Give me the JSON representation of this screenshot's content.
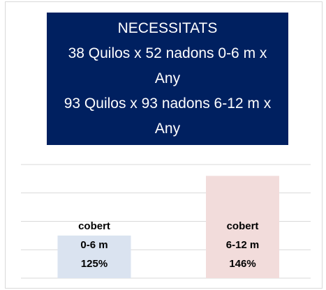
{
  "chart_data": {
    "type": "bar",
    "title": "NECESSITATS",
    "subtitle": [
      "38 Quilos x 52 nadons 0-6 m x Any",
      "93 Quilos x 93 nadons 6-12 m x Any"
    ],
    "categories": [
      "0-6 m",
      "6-12 m"
    ],
    "series": [
      {
        "name": "cobert",
        "values": [
          125,
          146
        ],
        "value_labels": [
          "125%",
          "146%"
        ],
        "colors": [
          "#dae3f0",
          "#f2dcdb"
        ]
      }
    ],
    "ylim": [
      110,
      150
    ],
    "yticks": [
      110,
      120,
      130,
      140,
      150
    ],
    "grid": true
  }
}
